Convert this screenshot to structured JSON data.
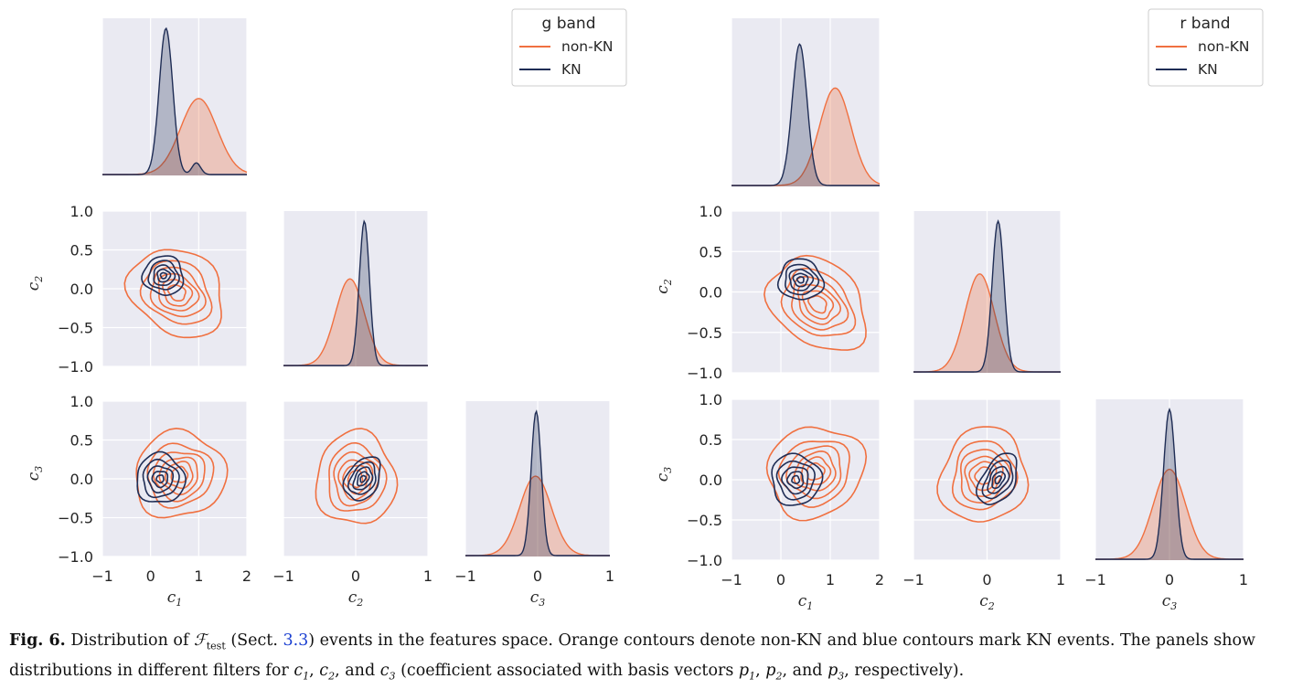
{
  "colors": {
    "non_kn": "#f07040",
    "kn": "#1f2d55",
    "panel_bg": "#eaeaf2"
  },
  "chart_data": [
    {
      "type": "kde-pairplot",
      "legend": {
        "title": "g band",
        "entries": [
          "non-KN",
          "KN"
        ],
        "placement": "top-right"
      },
      "variables": [
        {
          "name": "c1",
          "label_base": "c",
          "label_sub": "1",
          "lim": [
            -1,
            2
          ],
          "ticks": [
            -1,
            0,
            1,
            2
          ],
          "tick_labels": [
            "−1",
            "0",
            "1",
            "2"
          ]
        },
        {
          "name": "c2",
          "label_base": "c",
          "label_sub": "2",
          "lim": [
            -1,
            1
          ],
          "ticks": [
            -1,
            0,
            1
          ],
          "tick_labels": [
            "−1",
            "0",
            "1"
          ]
        },
        {
          "name": "c3",
          "label_base": "c",
          "label_sub": "3",
          "lim": [
            -1,
            1
          ],
          "ticks": [
            -1,
            0,
            1
          ],
          "tick_labels": [
            "−1",
            "0",
            "1"
          ]
        }
      ],
      "y_ticks": [
        -1.0,
        -0.5,
        0.0,
        0.5,
        1.0
      ],
      "y_tick_labels": [
        "−1.0",
        "−0.5",
        "0.0",
        "0.5",
        "1.0"
      ],
      "diagonal": [
        {
          "non_kn": {
            "mean": 1.0,
            "sd": 0.38,
            "peak": 0.52
          },
          "kn": {
            "mean": 0.32,
            "sd": 0.14,
            "peak": 1.0,
            "shoulder": [
              0.95,
              0.08,
              0.09
            ]
          }
        },
        {
          "non_kn": {
            "mean": -0.08,
            "sd": 0.2,
            "peak": 0.6
          },
          "kn": {
            "mean": 0.12,
            "sd": 0.07,
            "peak": 1.0
          }
        },
        {
          "non_kn": {
            "mean": -0.03,
            "sd": 0.22,
            "peak": 0.55
          },
          "kn": {
            "mean": -0.02,
            "sd": 0.07,
            "peak": 1.0
          }
        }
      ],
      "contours": [
        {
          "row": 1,
          "col": 0,
          "non_kn": {
            "cx": 0.55,
            "cy": -0.05,
            "rx": 1.05,
            "ry": 0.52,
            "angle": -35
          },
          "kn": {
            "cx": 0.27,
            "cy": 0.17,
            "rx": 0.42,
            "ry": 0.25,
            "angle": -20
          }
        },
        {
          "row": 2,
          "col": 0,
          "non_kn": {
            "cx": 0.6,
            "cy": 0.05,
            "rx": 0.95,
            "ry": 0.55,
            "angle": 20
          },
          "kn": {
            "cx": 0.2,
            "cy": 0.0,
            "rx": 0.5,
            "ry": 0.32,
            "angle": 10
          }
        },
        {
          "row": 2,
          "col": 1,
          "non_kn": {
            "cx": 0.0,
            "cy": 0.0,
            "rx": 0.55,
            "ry": 0.6,
            "angle": 0
          },
          "kn": {
            "cx": 0.1,
            "cy": 0.0,
            "rx": 0.22,
            "ry": 0.3,
            "angle": -30
          }
        }
      ]
    },
    {
      "type": "kde-pairplot",
      "legend": {
        "title": "r band",
        "entries": [
          "non-KN",
          "KN"
        ],
        "placement": "top-right"
      },
      "variables": [
        {
          "name": "c1",
          "label_base": "c",
          "label_sub": "1",
          "lim": [
            -1,
            2
          ],
          "ticks": [
            -1,
            0,
            1,
            2
          ],
          "tick_labels": [
            "−1",
            "0",
            "1",
            "2"
          ]
        },
        {
          "name": "c2",
          "label_base": "c",
          "label_sub": "2",
          "lim": [
            -1,
            1
          ],
          "ticks": [
            -1,
            0,
            1
          ],
          "tick_labels": [
            "−1",
            "0",
            "1"
          ]
        },
        {
          "name": "c3",
          "label_base": "c",
          "label_sub": "3",
          "lim": [
            -1,
            1
          ],
          "ticks": [
            -1,
            0,
            1
          ],
          "tick_labels": [
            "−1",
            "0",
            "1"
          ]
        }
      ],
      "y_ticks": [
        -1.0,
        -0.5,
        0.0,
        0.5,
        1.0
      ],
      "y_tick_labels": [
        "−1.0",
        "−0.5",
        "0.0",
        "0.5",
        "1.0"
      ],
      "diagonal": [
        {
          "non_kn": {
            "mean": 1.1,
            "sd": 0.32,
            "peak": 0.62
          },
          "kn": {
            "mean": 0.38,
            "sd": 0.15,
            "peak": 0.9
          }
        },
        {
          "non_kn": {
            "mean": -0.1,
            "sd": 0.2,
            "peak": 0.65
          },
          "kn": {
            "mean": 0.15,
            "sd": 0.08,
            "peak": 1.0
          }
        },
        {
          "non_kn": {
            "mean": 0.0,
            "sd": 0.22,
            "peak": 0.6
          },
          "kn": {
            "mean": 0.0,
            "sd": 0.08,
            "peak": 1.0
          }
        }
      ],
      "contours": [
        {
          "row": 1,
          "col": 0,
          "non_kn": {
            "cx": 0.75,
            "cy": -0.15,
            "rx": 1.1,
            "ry": 0.5,
            "angle": -40
          },
          "kn": {
            "cx": 0.4,
            "cy": 0.15,
            "rx": 0.45,
            "ry": 0.25,
            "angle": -15
          }
        },
        {
          "row": 2,
          "col": 0,
          "non_kn": {
            "cx": 0.7,
            "cy": 0.1,
            "rx": 1.0,
            "ry": 0.55,
            "angle": 30
          },
          "kn": {
            "cx": 0.3,
            "cy": 0.0,
            "rx": 0.5,
            "ry": 0.32,
            "angle": 15
          }
        },
        {
          "row": 2,
          "col": 1,
          "non_kn": {
            "cx": -0.05,
            "cy": 0.05,
            "rx": 0.58,
            "ry": 0.6,
            "angle": -20
          },
          "kn": {
            "cx": 0.15,
            "cy": 0.0,
            "rx": 0.22,
            "ry": 0.35,
            "angle": -30
          }
        }
      ]
    }
  ],
  "caption": {
    "label": "Fig. 6.",
    "part1": " Distribution of ",
    "symbol": "ℱ",
    "symbol_sub": "test",
    "part2": " (Sect. ",
    "ref": "3.3",
    "part3": ") events in the features space. Orange contours denote non-KN and blue contours mark KN events. The panels show distributions in different filters for ",
    "tail": " (coefficient associated with basis vectors ",
    "end": ", respectively)."
  }
}
